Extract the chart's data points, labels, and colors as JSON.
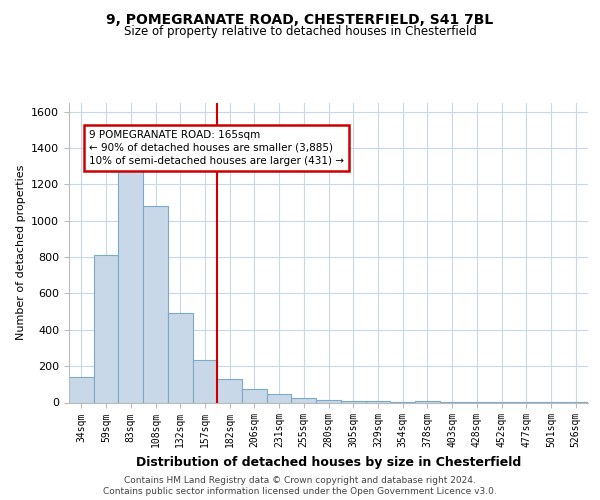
{
  "title1": "9, POMEGRANATE ROAD, CHESTERFIELD, S41 7BL",
  "title2": "Size of property relative to detached houses in Chesterfield",
  "xlabel": "Distribution of detached houses by size in Chesterfield",
  "ylabel": "Number of detached properties",
  "footer1": "Contains HM Land Registry data © Crown copyright and database right 2024.",
  "footer2": "Contains public sector information licensed under the Open Government Licence v3.0.",
  "categories": [
    "34sqm",
    "59sqm",
    "83sqm",
    "108sqm",
    "132sqm",
    "157sqm",
    "182sqm",
    "206sqm",
    "231sqm",
    "255sqm",
    "280sqm",
    "305sqm",
    "329sqm",
    "354sqm",
    "378sqm",
    "403sqm",
    "428sqm",
    "452sqm",
    "477sqm",
    "501sqm",
    "526sqm"
  ],
  "values": [
    140,
    810,
    1300,
    1080,
    490,
    235,
    130,
    75,
    45,
    25,
    15,
    10,
    8,
    5,
    10,
    5,
    5,
    3,
    3,
    2,
    2
  ],
  "bar_color": "#c8d8e8",
  "bar_edge_color": "#7aaac8",
  "annotation_line1": "9 POMEGRANATE ROAD: 165sqm",
  "annotation_line2": "← 90% of detached houses are smaller (3,885)",
  "annotation_line3": "10% of semi-detached houses are larger (431) →",
  "vline_color": "#cc0000",
  "annotation_box_edge": "#cc0000",
  "ylim": [
    0,
    1650
  ],
  "yticks": [
    0,
    200,
    400,
    600,
    800,
    1000,
    1200,
    1400,
    1600
  ],
  "background_color": "#ffffff",
  "grid_color": "#c8d8e8",
  "vline_x": 5.5
}
